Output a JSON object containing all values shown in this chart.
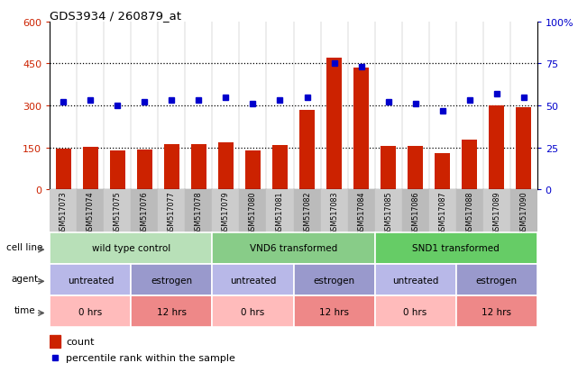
{
  "title": "GDS3934 / 260879_at",
  "samples": [
    "GSM517073",
    "GSM517074",
    "GSM517075",
    "GSM517076",
    "GSM517077",
    "GSM517078",
    "GSM517079",
    "GSM517080",
    "GSM517081",
    "GSM517082",
    "GSM517083",
    "GSM517084",
    "GSM517085",
    "GSM517086",
    "GSM517087",
    "GSM517088",
    "GSM517089",
    "GSM517090"
  ],
  "bar_values": [
    145,
    152,
    138,
    143,
    160,
    162,
    168,
    140,
    158,
    285,
    470,
    435,
    155,
    155,
    128,
    178,
    300,
    295
  ],
  "dot_values": [
    52,
    53,
    50,
    52,
    53,
    53,
    55,
    51,
    53,
    55,
    75,
    73,
    52,
    51,
    47,
    53,
    57,
    55
  ],
  "bar_color": "#cc2200",
  "dot_color": "#0000cc",
  "ylim_left": [
    0,
    600
  ],
  "ylim_right": [
    0,
    100
  ],
  "yticks_left": [
    0,
    150,
    300,
    450,
    600
  ],
  "yticks_right": [
    0,
    25,
    50,
    75,
    100
  ],
  "ytick_labels_right": [
    "0",
    "25",
    "50",
    "75",
    "100%"
  ],
  "hlines": [
    150,
    300,
    450
  ],
  "cell_line_groups": [
    {
      "label": "wild type control",
      "start": 0,
      "end": 6,
      "color": "#b8e0b8"
    },
    {
      "label": "VND6 transformed",
      "start": 6,
      "end": 12,
      "color": "#88cc88"
    },
    {
      "label": "SND1 transformed",
      "start": 12,
      "end": 18,
      "color": "#66cc66"
    }
  ],
  "agent_groups": [
    {
      "label": "untreated",
      "start": 0,
      "end": 3,
      "color": "#b8b8e8"
    },
    {
      "label": "estrogen",
      "start": 3,
      "end": 6,
      "color": "#9999cc"
    },
    {
      "label": "untreated",
      "start": 6,
      "end": 9,
      "color": "#b8b8e8"
    },
    {
      "label": "estrogen",
      "start": 9,
      "end": 12,
      "color": "#9999cc"
    },
    {
      "label": "untreated",
      "start": 12,
      "end": 15,
      "color": "#b8b8e8"
    },
    {
      "label": "estrogen",
      "start": 15,
      "end": 18,
      "color": "#9999cc"
    }
  ],
  "time_groups": [
    {
      "label": "0 hrs",
      "start": 0,
      "end": 3,
      "color": "#ffbbbb"
    },
    {
      "label": "12 hrs",
      "start": 3,
      "end": 6,
      "color": "#ee8888"
    },
    {
      "label": "0 hrs",
      "start": 6,
      "end": 9,
      "color": "#ffbbbb"
    },
    {
      "label": "12 hrs",
      "start": 9,
      "end": 12,
      "color": "#ee8888"
    },
    {
      "label": "0 hrs",
      "start": 12,
      "end": 15,
      "color": "#ffbbbb"
    },
    {
      "label": "12 hrs",
      "start": 15,
      "end": 18,
      "color": "#ee8888"
    }
  ],
  "legend_count_label": "count",
  "legend_pct_label": "percentile rank within the sample",
  "tick_area_bg": "#cccccc",
  "plot_bg_color": "#ffffff"
}
